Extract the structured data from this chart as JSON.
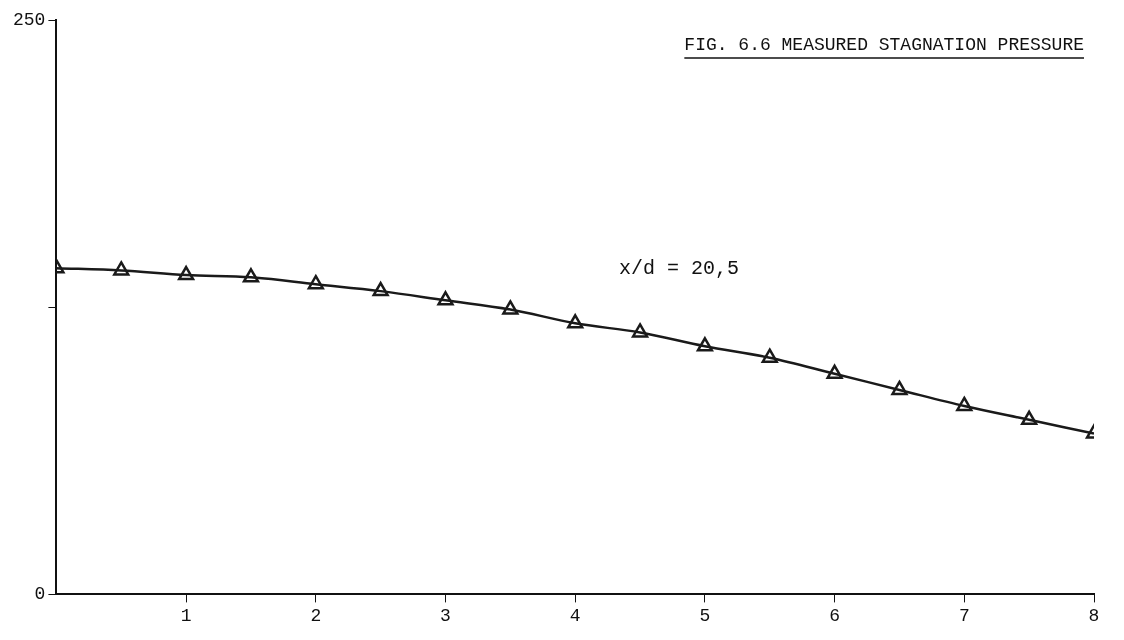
{
  "chart_data": {
    "type": "line",
    "title": "FIG. 6.6 MEASURED STAGNATION PRESSURE",
    "x": [
      0,
      0.5,
      1,
      1.5,
      2,
      2.5,
      3,
      3.5,
      4,
      4.5,
      5,
      5.5,
      6,
      6.5,
      7,
      7.5,
      8
    ],
    "series": [
      {
        "color": "#1a1a1a",
        "values": [
          142,
          141,
          139,
          138,
          135,
          132,
          128,
          124,
          118,
          114,
          108,
          103,
          96,
          89,
          82,
          76,
          70
        ]
      }
    ],
    "xlim": [
      0,
      8
    ],
    "xticks": [
      1,
      2,
      3,
      4,
      5,
      6,
      7,
      8
    ],
    "ylim": [
      0,
      250
    ],
    "yticks": [
      0,
      {
        "value": 125,
        "label": null
      },
      250
    ],
    "annotations": [
      "x/d = 20,5"
    ],
    "marker": "triangle",
    "line_style": "solid",
    "grid": false,
    "legend": false
  }
}
